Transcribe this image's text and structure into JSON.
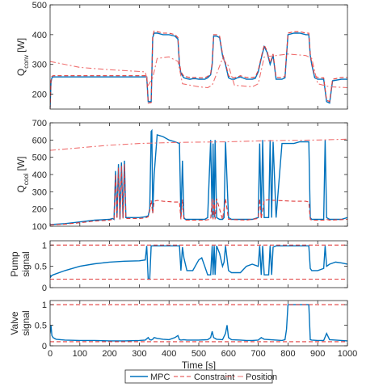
{
  "chart_data": [
    {
      "type": "line",
      "ylabel": "Q",
      "ylabel_sub": "conv",
      "ylabel_unit": "[W]",
      "xlim": [
        0,
        1000
      ],
      "ylim": [
        150,
        500
      ],
      "yticks": [
        200,
        300,
        400,
        500
      ],
      "xticks": [
        0,
        100,
        200,
        300,
        400,
        500,
        600,
        700,
        800,
        900,
        1000
      ],
      "show_xticklabels": false,
      "series": [
        {
          "legend_ref": 0,
          "color": "#0072BD",
          "style": "solid",
          "x": [
            0,
            3,
            6,
            10,
            50,
            150,
            250,
            325,
            330,
            340,
            345,
            350,
            360,
            380,
            400,
            420,
            430,
            435,
            440,
            450,
            460,
            470,
            480,
            490,
            500,
            510,
            520,
            530,
            540,
            545,
            550,
            560,
            570,
            580,
            590,
            600,
            610,
            620,
            630,
            640,
            660,
            680,
            690,
            700,
            710,
            720,
            730,
            740,
            750,
            760,
            780,
            790,
            800,
            820,
            840,
            860,
            870,
            875,
            880,
            890,
            900,
            910,
            920,
            930,
            940,
            950,
            980,
            1000
          ],
          "y": [
            155,
            240,
            255,
            258,
            258,
            258,
            258,
            258,
            175,
            175,
            390,
            405,
            405,
            400,
            400,
            395,
            385,
            300,
            270,
            255,
            252,
            250,
            252,
            252,
            250,
            250,
            250,
            255,
            265,
            300,
            395,
            395,
            390,
            330,
            300,
            255,
            250,
            250,
            255,
            258,
            250,
            250,
            253,
            275,
            320,
            360,
            340,
            300,
            330,
            250,
            250,
            255,
            400,
            405,
            405,
            400,
            400,
            330,
            300,
            255,
            250,
            250,
            250,
            175,
            170,
            245,
            250,
            250
          ]
        },
        {
          "legend_ref": 1,
          "color": "#E03C3C",
          "style": "dashed",
          "x": [
            0,
            3,
            6,
            10,
            50,
            150,
            250,
            325,
            330,
            340,
            345,
            350,
            360,
            380,
            400,
            420,
            430,
            435,
            440,
            450,
            460,
            470,
            480,
            490,
            500,
            510,
            520,
            530,
            540,
            545,
            550,
            560,
            570,
            580,
            590,
            600,
            610,
            620,
            630,
            640,
            660,
            680,
            690,
            700,
            710,
            720,
            730,
            740,
            750,
            760,
            780,
            790,
            800,
            820,
            840,
            860,
            870,
            875,
            880,
            890,
            900,
            910,
            920,
            930,
            940,
            950,
            980,
            1000
          ],
          "y": [
            150,
            245,
            260,
            262,
            262,
            262,
            262,
            262,
            170,
            172,
            395,
            412,
            410,
            405,
            405,
            400,
            390,
            305,
            275,
            260,
            258,
            256,
            256,
            256,
            255,
            255,
            255,
            260,
            270,
            305,
            400,
            400,
            395,
            335,
            305,
            262,
            256,
            255,
            258,
            262,
            256,
            256,
            258,
            280,
            325,
            365,
            345,
            305,
            335,
            256,
            256,
            260,
            405,
            410,
            410,
            405,
            405,
            335,
            305,
            262,
            256,
            255,
            255,
            180,
            175,
            250,
            256,
            256
          ]
        },
        {
          "legend_ref": 2,
          "color": "#F07070",
          "style": "dashdot",
          "x": [
            0,
            10,
            100,
            200,
            320,
            330,
            345,
            360,
            400,
            430,
            445,
            500,
            530,
            545,
            580,
            600,
            620,
            680,
            700,
            720,
            760,
            800,
            860,
            880,
            900,
            940,
            1000
          ],
          "y": [
            310,
            308,
            290,
            282,
            275,
            230,
            255,
            320,
            325,
            310,
            235,
            225,
            222,
            230,
            320,
            295,
            230,
            225,
            235,
            325,
            330,
            335,
            330,
            320,
            235,
            225,
            222
          ]
        }
      ]
    },
    {
      "type": "line",
      "ylabel": "Q",
      "ylabel_sub": "cool",
      "ylabel_unit": "[W]",
      "xlim": [
        0,
        1000
      ],
      "ylim": [
        100,
        700
      ],
      "yticks": [
        100,
        200,
        300,
        400,
        500,
        600,
        700
      ],
      "xticks": [
        0,
        100,
        200,
        300,
        400,
        500,
        600,
        700,
        800,
        900,
        1000
      ],
      "show_xticklabels": false,
      "series": [
        {
          "legend_ref": 0,
          "color": "#0072BD",
          "style": "solid",
          "x": [
            0,
            50,
            100,
            150,
            200,
            210,
            215,
            220,
            225,
            230,
            235,
            240,
            245,
            250,
            255,
            260,
            270,
            280,
            300,
            320,
            330,
            335,
            340,
            342,
            345,
            350,
            360,
            380,
            400,
            420,
            435,
            440,
            445,
            450,
            455,
            480,
            520,
            530,
            540,
            545,
            548,
            552,
            555,
            560,
            570,
            580,
            585,
            590,
            600,
            610,
            660,
            680,
            700,
            705,
            710,
            715,
            720,
            735,
            740,
            745,
            750,
            760,
            780,
            820,
            840,
            860,
            870,
            875,
            880,
            900,
            920,
            925,
            930,
            940,
            960,
            980,
            1000
          ],
          "y": [
            110,
            115,
            125,
            135,
            140,
            145,
            140,
            420,
            150,
            460,
            140,
            470,
            150,
            480,
            150,
            150,
            150,
            150,
            150,
            155,
            160,
            200,
            650,
            655,
            180,
            400,
            630,
            620,
            600,
            590,
            580,
            150,
            480,
            150,
            140,
            140,
            140,
            150,
            600,
            150,
            580,
            150,
            600,
            150,
            140,
            140,
            150,
            590,
            150,
            140,
            140,
            140,
            150,
            580,
            150,
            600,
            150,
            150,
            600,
            150,
            590,
            150,
            580,
            580,
            590,
            590,
            590,
            150,
            140,
            140,
            140,
            600,
            150,
            140,
            140,
            140,
            150
          ]
        },
        {
          "legend_ref": 1,
          "color": "#E03C3C",
          "style": "dashed",
          "x": [
            0,
            50,
            100,
            150,
            200,
            210,
            215,
            220,
            225,
            230,
            235,
            240,
            245,
            250,
            255,
            260,
            300,
            320,
            330,
            335,
            340,
            345,
            350,
            360,
            380,
            420,
            435,
            440,
            445,
            450,
            455,
            520,
            540,
            545,
            548,
            552,
            555,
            560,
            580,
            590,
            600,
            660,
            700,
            705,
            710,
            720,
            740,
            750,
            760,
            820,
            860,
            870,
            875,
            880,
            920,
            930,
            940,
            1000
          ],
          "y": [
            108,
            112,
            120,
            130,
            135,
            140,
            138,
            400,
            145,
            440,
            138,
            450,
            145,
            460,
            145,
            145,
            145,
            148,
            155,
            190,
            250,
            175,
            245,
            250,
            245,
            240,
            240,
            140,
            255,
            140,
            135,
            135,
            140,
            260,
            140,
            250,
            140,
            260,
            140,
            260,
            140,
            135,
            145,
            260,
            145,
            250,
            255,
            250,
            250,
            245,
            245,
            240,
            140,
            135,
            135,
            140,
            135,
            140
          ]
        },
        {
          "legend_ref": 2,
          "color": "#F07070",
          "style": "dashdot",
          "x": [
            0,
            100,
            200,
            300,
            400,
            500,
            600,
            700,
            800,
            900,
            1000
          ],
          "y": [
            540,
            555,
            570,
            580,
            585,
            588,
            590,
            595,
            598,
            600,
            605
          ]
        }
      ]
    },
    {
      "type": "line",
      "ylabel": "Pump",
      "ylabel_line2": "signal",
      "xlim": [
        0,
        1000
      ],
      "ylim": [
        0,
        1.1
      ],
      "yticks": [
        0,
        0.5,
        1
      ],
      "xticks": [
        0,
        100,
        200,
        300,
        400,
        500,
        600,
        700,
        800,
        900,
        1000
      ],
      "show_xticklabels": false,
      "series": [
        {
          "legend_ref": 0,
          "color": "#0072BD",
          "style": "solid",
          "x": [
            0,
            2,
            5,
            10,
            50,
            100,
            150,
            200,
            250,
            300,
            320,
            325,
            330,
            335,
            340,
            345,
            355,
            360,
            370,
            380,
            400,
            420,
            435,
            440,
            445,
            450,
            460,
            480,
            500,
            510,
            520,
            530,
            540,
            545,
            548,
            552,
            555,
            560,
            570,
            580,
            585,
            590,
            600,
            610,
            640,
            660,
            680,
            700,
            705,
            710,
            715,
            720,
            735,
            740,
            745,
            750,
            760,
            780,
            800,
            820,
            840,
            860,
            870,
            875,
            880,
            900,
            920,
            925,
            930,
            940,
            960,
            980,
            1000
          ],
          "y": [
            0.3,
            0.25,
            0.28,
            0.3,
            0.4,
            0.5,
            0.56,
            0.6,
            0.62,
            0.63,
            0.65,
            0.98,
            0.2,
            0.2,
            0.98,
            0.98,
            0.98,
            0.98,
            0.98,
            0.98,
            0.98,
            0.98,
            0.98,
            0.4,
            0.95,
            0.7,
            0.4,
            0.4,
            0.65,
            0.7,
            0.5,
            0.3,
            0.3,
            0.98,
            0.3,
            0.98,
            0.3,
            0.98,
            0.8,
            0.5,
            0.6,
            0.98,
            0.4,
            0.35,
            0.35,
            0.5,
            0.55,
            0.5,
            0.98,
            0.3,
            0.98,
            0.3,
            0.3,
            0.98,
            0.3,
            0.95,
            0.98,
            0.98,
            0.98,
            0.98,
            0.98,
            0.98,
            0.98,
            0.45,
            0.4,
            0.4,
            0.45,
            0.98,
            0.5,
            0.55,
            0.6,
            0.58,
            0.55
          ]
        },
        {
          "legend_ref": 1,
          "color": "#E03C3C",
          "style": "dashed",
          "x": [
            0,
            1000
          ],
          "y": [
            1,
            1
          ]
        },
        {
          "legend_ref": 1,
          "color": "#E03C3C",
          "style": "dashed",
          "x": [
            0,
            1000
          ],
          "y": [
            0.2,
            0.2
          ]
        }
      ]
    },
    {
      "type": "line",
      "ylabel": "Valve",
      "ylabel_line2": "signal",
      "xlabel": "Time [s]",
      "xlim": [
        0,
        1000
      ],
      "ylim": [
        0,
        1.1
      ],
      "yticks": [
        0,
        0.5,
        1
      ],
      "xticks": [
        0,
        100,
        200,
        300,
        400,
        500,
        600,
        700,
        800,
        900,
        1000
      ],
      "show_xticklabels": true,
      "series": [
        {
          "legend_ref": 0,
          "color": "#0072BD",
          "style": "solid",
          "x": [
            0,
            3,
            6,
            10,
            20,
            50,
            100,
            150,
            200,
            250,
            300,
            320,
            330,
            335,
            340,
            345,
            350,
            360,
            380,
            400,
            420,
            430,
            435,
            440,
            450,
            460,
            500,
            530,
            540,
            545,
            550,
            560,
            580,
            590,
            595,
            600,
            610,
            640,
            660,
            680,
            700,
            710,
            720,
            740,
            760,
            780,
            790,
            795,
            800,
            820,
            860,
            870,
            875,
            880,
            900,
            920,
            930,
            940,
            960,
            980,
            1000
          ],
          "y": [
            0.3,
            0.5,
            0.25,
            0.2,
            0.16,
            0.14,
            0.13,
            0.13,
            0.12,
            0.12,
            0.13,
            0.14,
            0.2,
            0.15,
            0.14,
            0.16,
            0.2,
            0.18,
            0.16,
            0.15,
            0.2,
            0.25,
            0.15,
            0.14,
            0.15,
            0.14,
            0.14,
            0.15,
            0.2,
            0.35,
            0.2,
            0.16,
            0.15,
            0.3,
            0.5,
            0.2,
            0.15,
            0.14,
            0.13,
            0.13,
            0.14,
            0.2,
            0.16,
            0.15,
            0.14,
            0.13,
            0.15,
            0.4,
            1.0,
            1.0,
            1.0,
            1.0,
            0.15,
            0.14,
            0.13,
            0.13,
            0.3,
            0.15,
            0.14,
            0.13,
            0.12
          ]
        },
        {
          "legend_ref": 1,
          "color": "#E03C3C",
          "style": "dashed",
          "x": [
            0,
            1000
          ],
          "y": [
            1,
            1
          ]
        },
        {
          "legend_ref": 1,
          "color": "#E03C3C",
          "style": "dashed",
          "x": [
            0,
            1000
          ],
          "y": [
            0.1,
            0.1
          ]
        }
      ]
    }
  ],
  "legend": {
    "placement": "bottom-center",
    "entries": [
      {
        "label": "MPC",
        "color": "#0072BD",
        "style": "solid"
      },
      {
        "label": "Constraint",
        "color": "#E03C3C",
        "style": "dashed"
      },
      {
        "label": "Position",
        "color": "#F07070",
        "style": "dashdot"
      }
    ]
  }
}
